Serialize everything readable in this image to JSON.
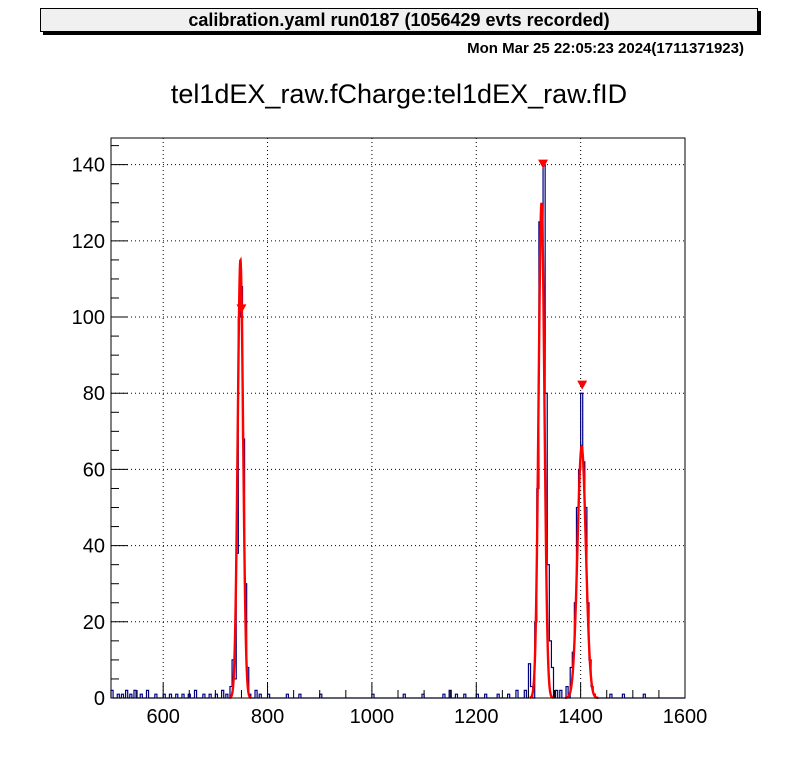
{
  "header": {
    "title": "calibration.yaml  run0187 (1056429 evts recorded)",
    "timestamp": "Mon Mar 25 22:05:23 2024(1711371923)"
  },
  "colors": {
    "histogram": "#000080",
    "fit": "#ff0000",
    "marker": "#ff0000",
    "frame": "#000000",
    "grid": "#000000"
  },
  "chart_data": {
    "type": "line",
    "title": "tel1dEX_raw.fCharge:tel1dEX_raw.fID",
    "xlim": [
      500,
      1600
    ],
    "ylim": [
      0,
      147
    ],
    "xticks": [
      600,
      800,
      1000,
      1200,
      1400,
      1600
    ],
    "yticks": [
      0,
      20,
      40,
      60,
      80,
      100,
      120,
      140
    ],
    "grid": true,
    "bin_width": 4,
    "series": [
      {
        "kind": "histogram",
        "bins": [
          [
            500,
            2
          ],
          [
            512,
            1
          ],
          [
            520,
            1
          ],
          [
            528,
            2
          ],
          [
            536,
            1
          ],
          [
            544,
            2
          ],
          [
            556,
            1
          ],
          [
            568,
            2
          ],
          [
            584,
            1
          ],
          [
            600,
            1
          ],
          [
            612,
            1
          ],
          [
            624,
            1
          ],
          [
            636,
            1
          ],
          [
            648,
            1
          ],
          [
            660,
            2
          ],
          [
            676,
            1
          ],
          [
            688,
            1
          ],
          [
            700,
            1
          ],
          [
            712,
            2
          ],
          [
            720,
            1
          ],
          [
            728,
            3
          ],
          [
            732,
            10
          ],
          [
            736,
            5
          ],
          [
            740,
            38
          ],
          [
            744,
            100
          ],
          [
            748,
            108
          ],
          [
            752,
            68
          ],
          [
            756,
            30
          ],
          [
            760,
            8
          ],
          [
            764,
            1
          ],
          [
            776,
            2
          ],
          [
            784,
            1
          ],
          [
            800,
            1
          ],
          [
            836,
            1
          ],
          [
            860,
            1
          ],
          [
            900,
            1
          ],
          [
            1000,
            1
          ],
          [
            1060,
            1
          ],
          [
            1096,
            1
          ],
          [
            1136,
            1
          ],
          [
            1148,
            2
          ],
          [
            1160,
            1
          ],
          [
            1176,
            1
          ],
          [
            1200,
            1
          ],
          [
            1216,
            1
          ],
          [
            1240,
            1
          ],
          [
            1260,
            1
          ],
          [
            1276,
            2
          ],
          [
            1292,
            2
          ],
          [
            1300,
            9
          ],
          [
            1304,
            3
          ],
          [
            1312,
            20
          ],
          [
            1316,
            55
          ],
          [
            1320,
            125
          ],
          [
            1324,
            120
          ],
          [
            1328,
            140
          ],
          [
            1332,
            80
          ],
          [
            1336,
            35
          ],
          [
            1340,
            15
          ],
          [
            1344,
            8
          ],
          [
            1352,
            2
          ],
          [
            1360,
            2
          ],
          [
            1372,
            3
          ],
          [
            1380,
            8
          ],
          [
            1384,
            12
          ],
          [
            1388,
            25
          ],
          [
            1392,
            50
          ],
          [
            1396,
            60
          ],
          [
            1400,
            80
          ],
          [
            1404,
            62
          ],
          [
            1408,
            50
          ],
          [
            1412,
            25
          ],
          [
            1416,
            10
          ],
          [
            1420,
            3
          ],
          [
            1424,
            1
          ],
          [
            1456,
            1
          ],
          [
            1480,
            1
          ],
          [
            1520,
            1
          ]
        ]
      },
      {
        "kind": "fit",
        "gaussians": [
          {
            "amplitude": 115,
            "mean": 748,
            "sigma": 5.2
          },
          {
            "amplitude": 130,
            "mean": 1325,
            "sigma": 5.6
          },
          {
            "amplitude": 66,
            "mean": 1402,
            "sigma": 8.0
          }
        ]
      },
      {
        "kind": "markers",
        "points": [
          {
            "x": 750,
            "y": 102
          },
          {
            "x": 1328,
            "y": 140
          },
          {
            "x": 1403,
            "y": 82
          }
        ]
      }
    ]
  }
}
